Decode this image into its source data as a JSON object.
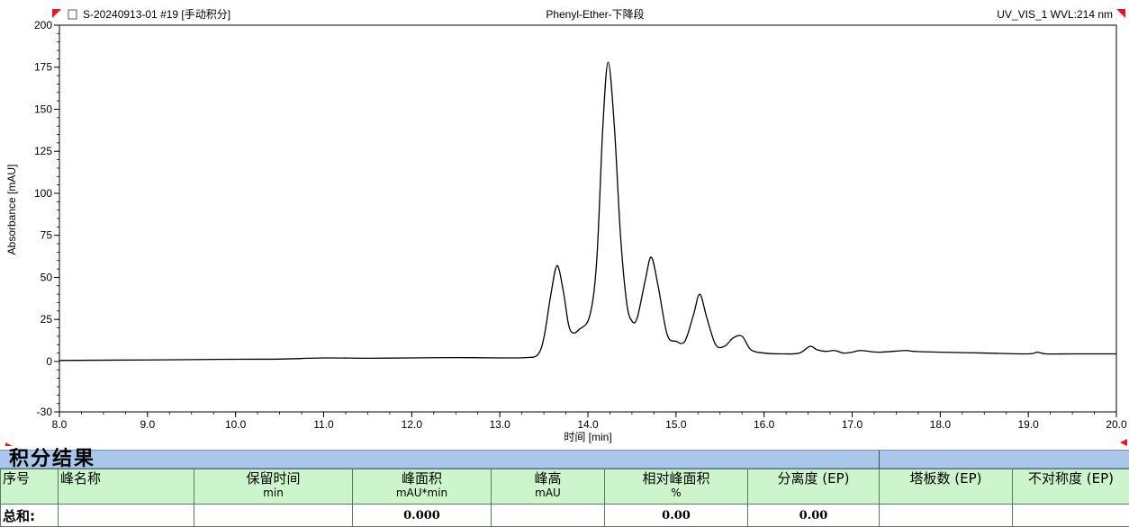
{
  "chart_data": {
    "type": "line",
    "header": {
      "sample": "S-20240913-01 #19 [手动积分]",
      "method": "Phenyl-Ether-下降段",
      "channel": "UV_VIS_1 WVL:214 nm"
    },
    "xlabel": "时间 [min]",
    "ylabel": "Absorbance [mAU]",
    "xlim": [
      8.0,
      20.0
    ],
    "ylim": [
      -30,
      200
    ],
    "x_ticks": [
      "8.0",
      "9.0",
      "10.0",
      "11.0",
      "12.0",
      "13.0",
      "14.0",
      "15.0",
      "16.0",
      "17.0",
      "18.0",
      "19.0",
      "20.0"
    ],
    "y_ticks": [
      "200",
      "175",
      "150",
      "125",
      "100",
      "75",
      "50",
      "25",
      "0",
      "-30"
    ],
    "grid": false,
    "series": [
      {
        "points": [
          [
            8.0,
            0.6
          ],
          [
            9.0,
            0.9
          ],
          [
            10.0,
            1.3
          ],
          [
            10.5,
            1.4
          ],
          [
            11.0,
            2.1
          ],
          [
            11.5,
            1.9
          ],
          [
            12.0,
            2.1
          ],
          [
            12.5,
            2.3
          ],
          [
            13.0,
            2.1
          ],
          [
            13.3,
            2.3
          ],
          [
            13.43,
            4.0
          ],
          [
            13.5,
            14
          ],
          [
            13.58,
            40
          ],
          [
            13.65,
            57
          ],
          [
            13.72,
            42
          ],
          [
            13.78,
            22
          ],
          [
            13.83,
            17
          ],
          [
            13.9,
            19
          ],
          [
            14.02,
            27
          ],
          [
            14.1,
            60
          ],
          [
            14.17,
            140
          ],
          [
            14.23,
            178
          ],
          [
            14.3,
            140
          ],
          [
            14.37,
            75
          ],
          [
            14.44,
            35
          ],
          [
            14.5,
            24
          ],
          [
            14.56,
            26
          ],
          [
            14.65,
            48
          ],
          [
            14.72,
            62
          ],
          [
            14.8,
            44
          ],
          [
            14.9,
            16
          ],
          [
            15.0,
            12
          ],
          [
            15.1,
            12
          ],
          [
            15.2,
            28
          ],
          [
            15.27,
            40
          ],
          [
            15.35,
            26
          ],
          [
            15.45,
            10
          ],
          [
            15.55,
            9
          ],
          [
            15.65,
            14
          ],
          [
            15.75,
            15
          ],
          [
            15.85,
            7
          ],
          [
            16.0,
            5
          ],
          [
            16.2,
            4.5
          ],
          [
            16.4,
            5
          ],
          [
            16.52,
            9
          ],
          [
            16.6,
            7
          ],
          [
            16.7,
            6
          ],
          [
            16.8,
            6.5
          ],
          [
            16.9,
            5
          ],
          [
            17.0,
            5.5
          ],
          [
            17.1,
            6.5
          ],
          [
            17.3,
            5.5
          ],
          [
            17.6,
            6.5
          ],
          [
            17.7,
            6
          ],
          [
            18.0,
            5.5
          ],
          [
            18.5,
            5
          ],
          [
            19.0,
            4.5
          ],
          [
            19.1,
            5.5
          ],
          [
            19.2,
            4.5
          ],
          [
            19.5,
            4.5
          ],
          [
            20.0,
            4.5
          ]
        ]
      }
    ]
  },
  "results": {
    "title": "积分结果",
    "columns": [
      {
        "label": "序号",
        "unit": ""
      },
      {
        "label": "峰名称",
        "unit": ""
      },
      {
        "label": "保留时间",
        "unit": "min"
      },
      {
        "label": "峰面积",
        "unit": "mAU*min"
      },
      {
        "label": "峰高",
        "unit": "mAU"
      },
      {
        "label": "相对峰面积",
        "unit": "%"
      },
      {
        "label": "分离度 (EP)",
        "unit": ""
      },
      {
        "label": "塔板数 (EP)",
        "unit": ""
      },
      {
        "label": "不对称度 (EP)",
        "unit": ""
      }
    ],
    "total_row": {
      "label": "总和:",
      "values": [
        "",
        "",
        "0.000",
        "",
        "0.00",
        "0.00",
        "",
        ""
      ]
    }
  },
  "colors": {
    "trace": "#000000",
    "corner_marker": "#e8141c",
    "results_header_bg": "#a8c7ea",
    "column_header_bg": "#ccf5cc"
  }
}
